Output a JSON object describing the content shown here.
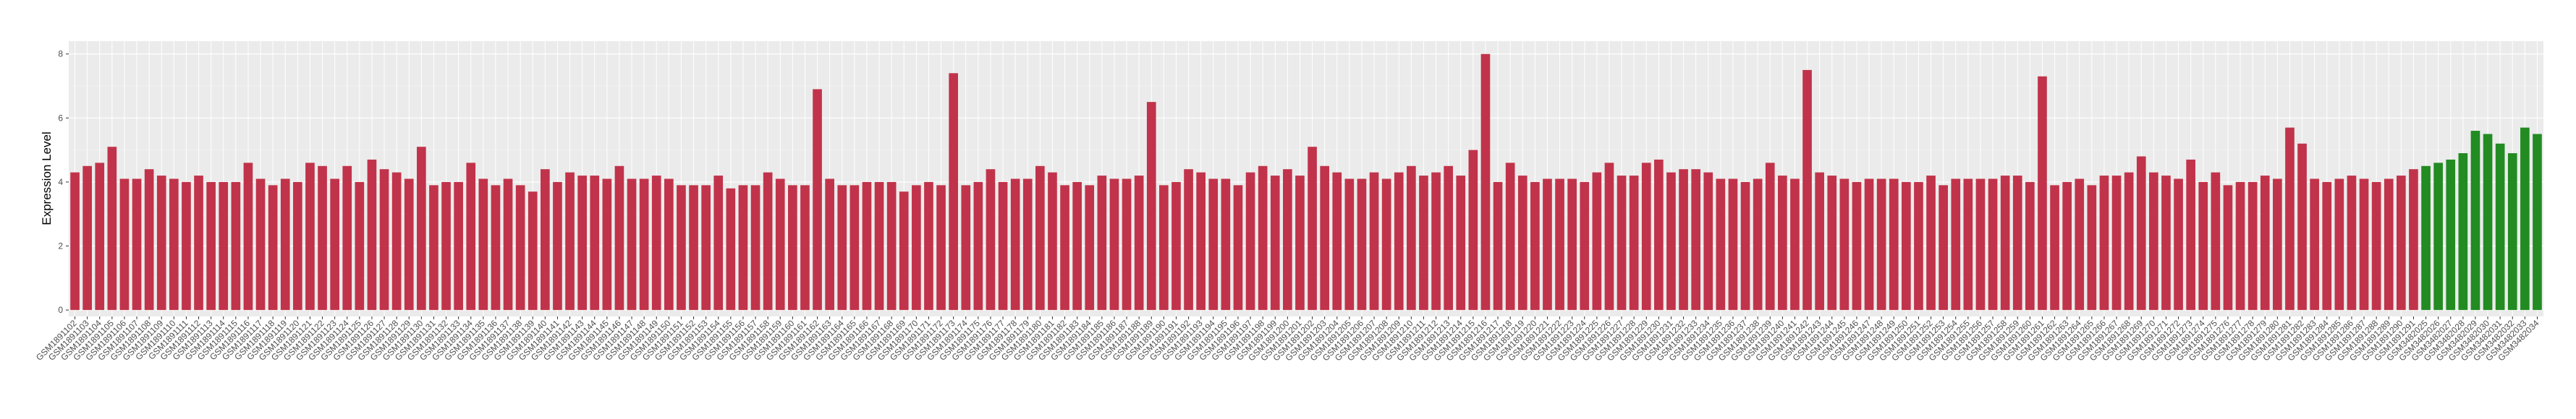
{
  "chart_data": {
    "type": "bar",
    "y_label": "Expression Level",
    "ylim": [
      -0.2,
      8.4
    ],
    "yticks": [
      0,
      2,
      4,
      6,
      8
    ],
    "grid": true,
    "categories": [
      "GSM1891102",
      "GSM1891103",
      "GSM1891104",
      "GSM1891105",
      "GSM1891106",
      "GSM1891107",
      "GSM1891108",
      "GSM1891109",
      "GSM1891110",
      "GSM1891111",
      "GSM1891112",
      "GSM1891113",
      "GSM1891114",
      "GSM1891115",
      "GSM1891116",
      "GSM1891117",
      "GSM1891118",
      "GSM1891119",
      "GSM1891120",
      "GSM1891121",
      "GSM1891122",
      "GSM1891123",
      "GSM1891124",
      "GSM1891125",
      "GSM1891126",
      "GSM1891127",
      "GSM1891128",
      "GSM1891129",
      "GSM1891130",
      "GSM1891131",
      "GSM1891132",
      "GSM1891133",
      "GSM1891134",
      "GSM1891135",
      "GSM1891136",
      "GSM1891137",
      "GSM1891138",
      "GSM1891139",
      "GSM1891140",
      "GSM1891141",
      "GSM1891142",
      "GSM1891143",
      "GSM1891144",
      "GSM1891145",
      "GSM1891146",
      "GSM1891147",
      "GSM1891148",
      "GSM1891149",
      "GSM1891150",
      "GSM1891151",
      "GSM1891152",
      "GSM1891153",
      "GSM1891154",
      "GSM1891155",
      "GSM1891156",
      "GSM1891157",
      "GSM1891158",
      "GSM1891159",
      "GSM1891160",
      "GSM1891161",
      "GSM1891162",
      "GSM1891163",
      "GSM1891164",
      "GSM1891165",
      "GSM1891166",
      "GSM1891167",
      "GSM1891168",
      "GSM1891169",
      "GSM1891170",
      "GSM1891171",
      "GSM1891172",
      "GSM1891173",
      "GSM1891174",
      "GSM1891175",
      "GSM1891176",
      "GSM1891177",
      "GSM1891178",
      "GSM1891179",
      "GSM1891180",
      "GSM1891181",
      "GSM1891182",
      "GSM1891183",
      "GSM1891184",
      "GSM1891185",
      "GSM1891186",
      "GSM1891187",
      "GSM1891188",
      "GSM1891189",
      "GSM1891190",
      "GSM1891191",
      "GSM1891192",
      "GSM1891193",
      "GSM1891194",
      "GSM1891195",
      "GSM1891196",
      "GSM1891197",
      "GSM1891198",
      "GSM1891199",
      "GSM1891200",
      "GSM1891201",
      "GSM1891202",
      "GSM1891203",
      "GSM1891204",
      "GSM1891205",
      "GSM1891206",
      "GSM1891207",
      "GSM1891208",
      "GSM1891209",
      "GSM1891210",
      "GSM1891211",
      "GSM1891212",
      "GSM1891213",
      "GSM1891214",
      "GSM1891215",
      "GSM1891216",
      "GSM1891217",
      "GSM1891218",
      "GSM1891219",
      "GSM1891220",
      "GSM1891221",
      "GSM1891222",
      "GSM1891223",
      "GSM1891224",
      "GSM1891225",
      "GSM1891226",
      "GSM1891227",
      "GSM1891228",
      "GSM1891229",
      "GSM1891230",
      "GSM1891231",
      "GSM1891232",
      "GSM1891233",
      "GSM1891234",
      "GSM1891235",
      "GSM1891236",
      "GSM1891237",
      "GSM1891238",
      "GSM1891239",
      "GSM1891240",
      "GSM1891241",
      "GSM1891242",
      "GSM1891243",
      "GSM1891244",
      "GSM1891245",
      "GSM1891246",
      "GSM1891247",
      "GSM1891248",
      "GSM1891249",
      "GSM1891250",
      "GSM1891251",
      "GSM1891252",
      "GSM1891253",
      "GSM1891254",
      "GSM1891255",
      "GSM1891256",
      "GSM1891257",
      "GSM1891258",
      "GSM1891259",
      "GSM1891260",
      "GSM1891261",
      "GSM1891262",
      "GSM1891263",
      "GSM1891264",
      "GSM1891265",
      "GSM1891266",
      "GSM1891267",
      "GSM1891268",
      "GSM1891269",
      "GSM1891270",
      "GSM1891271",
      "GSM1891272",
      "GSM1891273",
      "GSM1891274",
      "GSM1891275",
      "GSM1891276",
      "GSM1891277",
      "GSM1891278",
      "GSM1891279",
      "GSM1891280",
      "GSM1891281",
      "GSM1891282",
      "GSM1891283",
      "GSM1891284",
      "GSM1891285",
      "GSM1891286",
      "GSM1891287",
      "GSM1891288",
      "GSM1891289",
      "GSM1891290",
      "GSM1891291",
      "GSM3482025",
      "GSM3482026",
      "GSM3482027",
      "GSM3482028",
      "GSM3482029",
      "GSM3482030",
      "GSM3482031",
      "GSM3482032",
      "GSM3482033",
      "GSM3482034"
    ],
    "values": [
      4.3,
      4.5,
      4.6,
      5.1,
      4.1,
      4.1,
      4.4,
      4.2,
      4.1,
      4.0,
      4.2,
      4.0,
      4.0,
      4.0,
      4.6,
      4.1,
      3.9,
      4.1,
      4.0,
      4.6,
      4.5,
      4.1,
      4.5,
      4.0,
      4.7,
      4.4,
      4.3,
      4.1,
      5.1,
      3.9,
      4.0,
      4.0,
      4.6,
      4.1,
      3.9,
      4.1,
      3.9,
      3.7,
      4.4,
      4.0,
      4.3,
      4.2,
      4.2,
      4.1,
      4.5,
      4.1,
      4.1,
      4.2,
      4.1,
      3.9,
      3.9,
      3.9,
      4.2,
      3.8,
      3.9,
      3.9,
      4.3,
      4.1,
      3.9,
      3.9,
      6.9,
      4.1,
      3.9,
      3.9,
      4.0,
      4.0,
      4.0,
      3.7,
      3.9,
      4.0,
      3.9,
      7.4,
      3.9,
      4.0,
      4.4,
      4.0,
      4.1,
      4.1,
      4.5,
      4.3,
      3.9,
      4.0,
      3.9,
      4.2,
      4.1,
      4.1,
      4.2,
      6.5,
      3.9,
      4.0,
      4.4,
      4.3,
      4.1,
      4.1,
      3.9,
      4.3,
      4.5,
      4.2,
      4.4,
      4.2,
      5.1,
      4.5,
      4.3,
      4.1,
      4.1,
      4.3,
      4.1,
      4.3,
      4.5,
      4.2,
      4.3,
      4.5,
      4.2,
      5.0,
      8.0,
      4.0,
      4.6,
      4.2,
      4.0,
      4.1,
      4.1,
      4.1,
      4.0,
      4.3,
      4.6,
      4.2,
      4.2,
      4.6,
      4.7,
      4.3,
      4.4,
      4.4,
      4.3,
      4.1,
      4.1,
      4.0,
      4.1,
      4.6,
      4.2,
      4.1,
      7.5,
      4.3,
      4.2,
      4.1,
      4.0,
      4.1,
      4.1,
      4.1,
      4.0,
      4.0,
      4.2,
      3.9,
      4.1,
      4.1,
      4.1,
      4.1,
      4.2,
      4.2,
      4.0,
      7.3,
      3.9,
      4.0,
      4.1,
      3.9,
      4.2,
      4.2,
      4.3,
      4.8,
      4.3,
      4.2,
      4.1,
      4.7,
      4.0,
      4.3,
      3.9,
      4.0,
      4.0,
      4.2,
      4.1,
      5.7,
      5.2,
      4.1,
      4.0,
      4.1,
      4.2,
      4.1,
      4.0,
      4.1,
      4.2,
      4.4,
      4.5,
      4.6,
      4.7,
      4.9,
      5.6,
      5.5,
      5.2,
      4.9,
      5.7,
      5.5
    ],
    "colors": [
      "#c1334a",
      "#c1334a",
      "#c1334a",
      "#c1334a",
      "#c1334a",
      "#c1334a",
      "#c1334a",
      "#c1334a",
      "#c1334a",
      "#c1334a",
      "#c1334a",
      "#c1334a",
      "#c1334a",
      "#c1334a",
      "#c1334a",
      "#c1334a",
      "#c1334a",
      "#c1334a",
      "#c1334a",
      "#c1334a",
      "#c1334a",
      "#c1334a",
      "#c1334a",
      "#c1334a",
      "#c1334a",
      "#c1334a",
      "#c1334a",
      "#c1334a",
      "#c1334a",
      "#c1334a",
      "#c1334a",
      "#c1334a",
      "#c1334a",
      "#c1334a",
      "#c1334a",
      "#c1334a",
      "#c1334a",
      "#c1334a",
      "#c1334a",
      "#c1334a",
      "#c1334a",
      "#c1334a",
      "#c1334a",
      "#c1334a",
      "#c1334a",
      "#c1334a",
      "#c1334a",
      "#c1334a",
      "#c1334a",
      "#c1334a",
      "#c1334a",
      "#c1334a",
      "#c1334a",
      "#c1334a",
      "#c1334a",
      "#c1334a",
      "#c1334a",
      "#c1334a",
      "#c1334a",
      "#c1334a",
      "#c1334a",
      "#c1334a",
      "#c1334a",
      "#c1334a",
      "#c1334a",
      "#c1334a",
      "#c1334a",
      "#c1334a",
      "#c1334a",
      "#c1334a",
      "#c1334a",
      "#c1334a",
      "#c1334a",
      "#c1334a",
      "#c1334a",
      "#c1334a",
      "#c1334a",
      "#c1334a",
      "#c1334a",
      "#c1334a",
      "#c1334a",
      "#c1334a",
      "#c1334a",
      "#c1334a",
      "#c1334a",
      "#c1334a",
      "#c1334a",
      "#c1334a",
      "#c1334a",
      "#c1334a",
      "#c1334a",
      "#c1334a",
      "#c1334a",
      "#c1334a",
      "#c1334a",
      "#c1334a",
      "#c1334a",
      "#c1334a",
      "#c1334a",
      "#c1334a",
      "#c1334a",
      "#c1334a",
      "#c1334a",
      "#c1334a",
      "#c1334a",
      "#c1334a",
      "#c1334a",
      "#c1334a",
      "#c1334a",
      "#c1334a",
      "#c1334a",
      "#c1334a",
      "#c1334a",
      "#c1334a",
      "#c1334a",
      "#c1334a",
      "#c1334a",
      "#c1334a",
      "#c1334a",
      "#c1334a",
      "#c1334a",
      "#c1334a",
      "#c1334a",
      "#c1334a",
      "#c1334a",
      "#c1334a",
      "#c1334a",
      "#c1334a",
      "#c1334a",
      "#c1334a",
      "#c1334a",
      "#c1334a",
      "#c1334a",
      "#c1334a",
      "#c1334a",
      "#c1334a",
      "#c1334a",
      "#c1334a",
      "#c1334a",
      "#c1334a",
      "#c1334a",
      "#c1334a",
      "#c1334a",
      "#c1334a",
      "#c1334a",
      "#c1334a",
      "#c1334a",
      "#c1334a",
      "#c1334a",
      "#c1334a",
      "#c1334a",
      "#c1334a",
      "#c1334a",
      "#c1334a",
      "#c1334a",
      "#c1334a",
      "#c1334a",
      "#c1334a",
      "#c1334a",
      "#c1334a",
      "#c1334a",
      "#c1334a",
      "#c1334a",
      "#c1334a",
      "#c1334a",
      "#c1334a",
      "#c1334a",
      "#c1334a",
      "#c1334a",
      "#c1334a",
      "#c1334a",
      "#c1334a",
      "#c1334a",
      "#c1334a",
      "#c1334a",
      "#c1334a",
      "#c1334a",
      "#c1334a",
      "#c1334a",
      "#c1334a",
      "#c1334a",
      "#c1334a",
      "#c1334a",
      "#c1334a",
      "#c1334a",
      "#c1334a",
      "#c1334a",
      "#c1334a",
      "#c1334a",
      "#c1334a",
      "#228b22",
      "#228b22",
      "#228b22",
      "#228b22",
      "#228b22",
      "#228b22",
      "#228b22",
      "#228b22",
      "#228b22",
      "#228b22"
    ]
  }
}
